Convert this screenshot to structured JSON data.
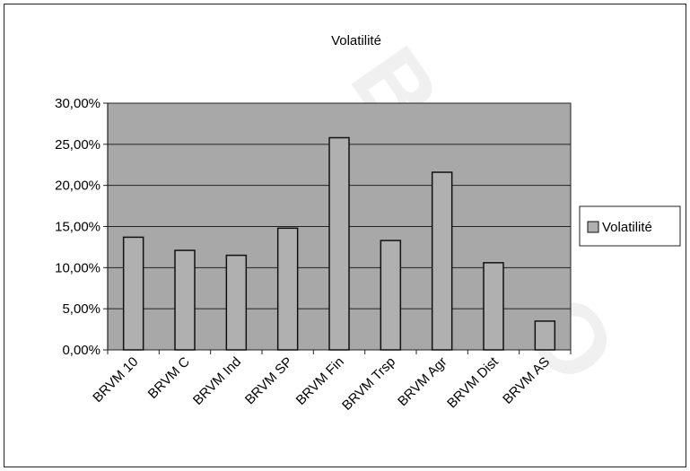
{
  "watermark_text": "BIBLIO",
  "colors": {
    "plot_bg": "#a8a8a8",
    "bar_fill": "#b0b0b0",
    "bar_stroke": "#111111",
    "grid": "#222222",
    "text": "#000000",
    "frame": "#222222"
  },
  "chart_data": {
    "type": "bar",
    "title": "Volatilité",
    "xlabel": "",
    "ylabel": "",
    "categories": [
      "BRVM 10",
      "BRVM C",
      "BRVM Ind",
      "BRVM SP",
      "BRVM Fin",
      "BRVM Trsp",
      "BRVM Agr",
      "BRVM Dist",
      "BRVM AS"
    ],
    "series": [
      {
        "name": "Volatilité",
        "values": [
          13.7,
          12.1,
          11.5,
          14.8,
          25.8,
          13.3,
          21.6,
          10.6,
          3.5
        ]
      }
    ],
    "ylim": [
      0,
      30
    ],
    "yticks": [
      0,
      5,
      10,
      15,
      20,
      25,
      30
    ],
    "ytick_labels": [
      "0,00%",
      "5,00%",
      "10,00%",
      "15,00%",
      "20,00%",
      "25,00%",
      "30,00%"
    ],
    "grid": true,
    "legend_position": "right"
  }
}
